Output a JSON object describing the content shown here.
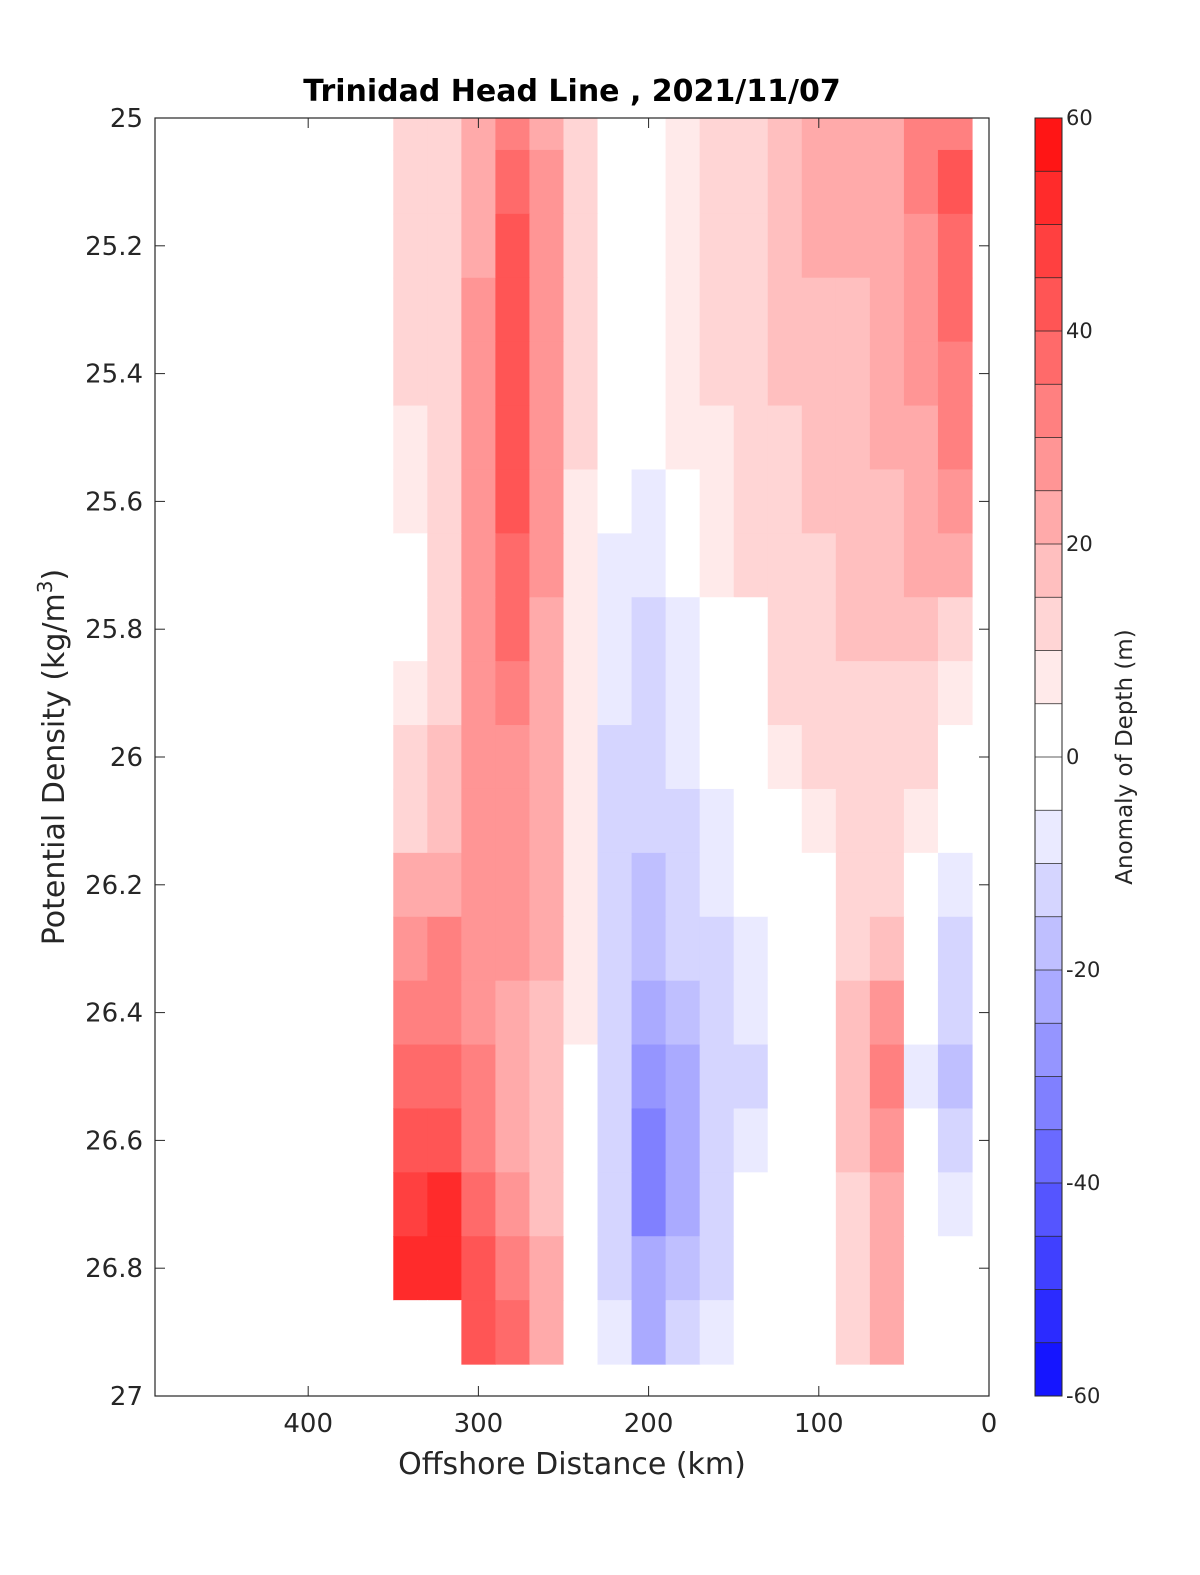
{
  "chart_data": {
    "type": "heatmap",
    "subtype": "filled-contour",
    "title": "Trinidad Head Line , 2021/11/07",
    "xlabel": "Offshore Distance (km)",
    "ylabel": "Potential Density (kg/m",
    "ylabel_sup": "3",
    "ylabel_end": ")",
    "xlim": [
      490,
      0
    ],
    "x_reversed": true,
    "ylim": [
      25,
      27
    ],
    "y_reversed": true,
    "x_ticks": [
      400,
      300,
      200,
      100,
      0
    ],
    "y_ticks": [
      "25",
      "25.2",
      "25.4",
      "25.6",
      "25.8",
      "26",
      "26.2",
      "26.4",
      "26.6",
      "26.8",
      "27"
    ],
    "colorbar": {
      "label": "Anomaly of Depth (m)",
      "range": [
        -60,
        60
      ],
      "step": 5,
      "ticks": [
        "-60",
        "-40",
        "-20",
        "0",
        "20",
        "40",
        "60"
      ],
      "colormap": "blue-white-red",
      "neg_color": "#0000ff",
      "pos_color": "#ff0000",
      "zero_color": "#ffffff"
    },
    "contour_lines": [
      0
    ],
    "x_grid": [
      340,
      320,
      300,
      280,
      260,
      240,
      220,
      200,
      180,
      160,
      140,
      120,
      100,
      80,
      60,
      40,
      20
    ],
    "y_grid": [
      25.0,
      25.1,
      25.2,
      25.3,
      25.4,
      25.5,
      25.6,
      25.7,
      25.8,
      25.9,
      26.0,
      26.1,
      26.2,
      26.3,
      26.4,
      26.5,
      26.6,
      26.7,
      26.8,
      26.9
    ],
    "values": [
      [
        14,
        14,
        24,
        32,
        22,
        10,
        2,
        4,
        8,
        10,
        14,
        18,
        20,
        20,
        24,
        30,
        34
      ],
      [
        14,
        14,
        24,
        36,
        26,
        12,
        2,
        4,
        8,
        10,
        14,
        18,
        20,
        20,
        24,
        30,
        40
      ],
      [
        12,
        14,
        24,
        40,
        28,
        12,
        1,
        4,
        8,
        10,
        14,
        18,
        20,
        20,
        22,
        28,
        38
      ],
      [
        12,
        14,
        26,
        42,
        28,
        12,
        1,
        4,
        8,
        10,
        14,
        16,
        18,
        18,
        20,
        26,
        36
      ],
      [
        10,
        12,
        26,
        42,
        28,
        10,
        1,
        3,
        8,
        10,
        12,
        16,
        18,
        18,
        20,
        26,
        34
      ],
      [
        8,
        12,
        26,
        42,
        28,
        10,
        1,
        -2,
        6,
        8,
        12,
        14,
        16,
        18,
        20,
        24,
        30
      ],
      [
        6,
        12,
        26,
        40,
        26,
        8,
        -3,
        -6,
        -1,
        8,
        10,
        14,
        16,
        16,
        18,
        22,
        26
      ],
      [
        4,
        12,
        26,
        38,
        26,
        8,
        -5,
        -8,
        -3,
        6,
        10,
        12,
        14,
        16,
        18,
        20,
        24
      ],
      [
        2,
        12,
        26,
        36,
        24,
        8,
        -6,
        -10,
        -5,
        0,
        4,
        12,
        14,
        16,
        16,
        16,
        14
      ],
      [
        6,
        14,
        28,
        32,
        24,
        6,
        -8,
        -12,
        -6,
        -1,
        2,
        10,
        12,
        14,
        14,
        12,
        8
      ],
      [
        10,
        16,
        26,
        28,
        22,
        6,
        -10,
        -14,
        -8,
        -3,
        -1,
        8,
        10,
        12,
        12,
        10,
        2
      ],
      [
        14,
        18,
        26,
        26,
        20,
        6,
        -12,
        -14,
        -10,
        -6,
        -2,
        2,
        8,
        10,
        10,
        6,
        -4
      ],
      [
        22,
        24,
        28,
        26,
        20,
        6,
        -12,
        -16,
        -12,
        -8,
        -3,
        0,
        4,
        10,
        10,
        3,
        -8
      ],
      [
        28,
        30,
        28,
        26,
        20,
        6,
        -14,
        -18,
        -12,
        -10,
        -6,
        -1,
        2,
        12,
        16,
        0,
        -10
      ],
      [
        34,
        34,
        28,
        24,
        18,
        6,
        -14,
        -22,
        -16,
        -10,
        -8,
        -3,
        1,
        16,
        26,
        -4,
        -14
      ],
      [
        38,
        38,
        30,
        22,
        18,
        4,
        -14,
        -28,
        -20,
        -12,
        -10,
        -3,
        -1,
        18,
        30,
        -6,
        -18
      ],
      [
        42,
        44,
        34,
        24,
        18,
        4,
        -14,
        -30,
        -20,
        -12,
        -6,
        2,
        -4,
        16,
        28,
        -4,
        -12
      ],
      [
        46,
        50,
        38,
        28,
        18,
        2,
        -12,
        -30,
        -20,
        -12,
        -4,
        2,
        -2,
        14,
        24,
        -2,
        -8
      ],
      [
        50,
        54,
        40,
        30,
        20,
        2,
        -10,
        -24,
        -16,
        -10,
        -4,
        1,
        -1,
        12,
        24,
        0,
        -4
      ],
      [
        0,
        0,
        44,
        36,
        22,
        0,
        -8,
        -20,
        -14,
        -8,
        -2,
        1,
        0,
        14,
        20,
        2,
        -2
      ]
    ]
  }
}
